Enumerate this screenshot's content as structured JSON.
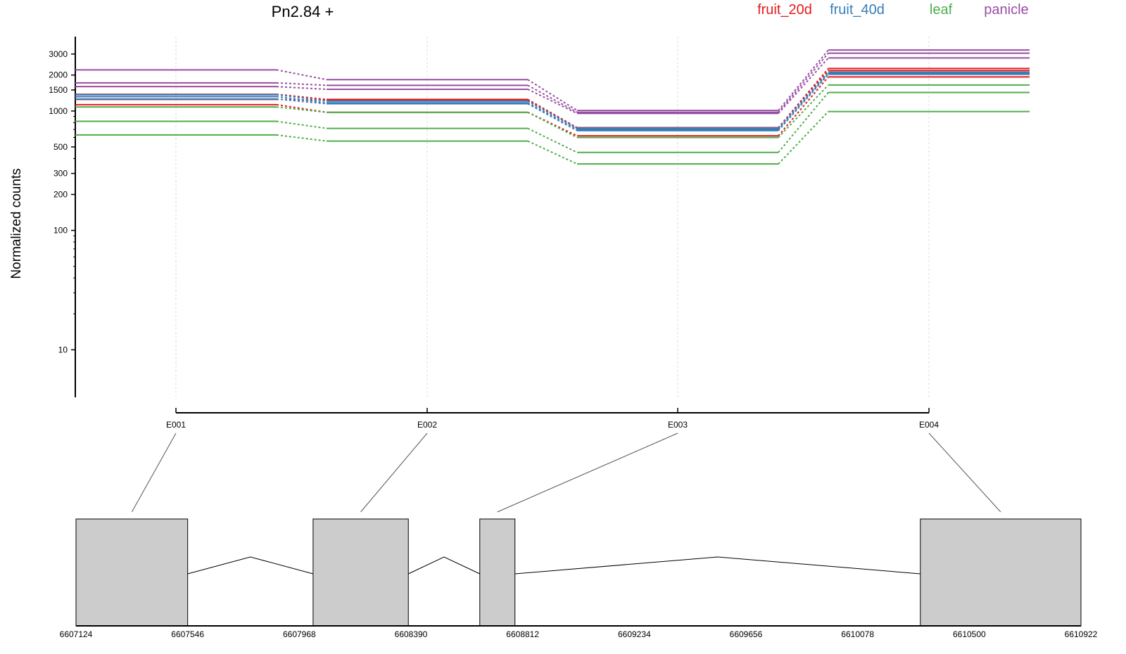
{
  "chart_data": {
    "type": "line",
    "title": "Pn2.84 +",
    "ylabel": "Normalized counts",
    "yscale": "log",
    "ylim": [
      4,
      4200
    ],
    "yticks": [
      10,
      100,
      200,
      300,
      500,
      1000,
      1500,
      2000,
      3000
    ],
    "grid": true,
    "legend_position": "top-right",
    "categories": [
      "E001",
      "E002",
      "E003",
      "E004"
    ],
    "colors": {
      "fruit_20d": "#e41a1c",
      "fruit_40d": "#377eb8",
      "leaf": "#4daf4a",
      "panicle": "#984ea3"
    },
    "legend": [
      "fruit_20d",
      "fruit_40d",
      "leaf",
      "panicle"
    ],
    "series": [
      {
        "group": "panicle",
        "values": [
          2210,
          1830,
          1010,
          3240
        ]
      },
      {
        "group": "panicle",
        "values": [
          1720,
          1640,
          975,
          3050
        ]
      },
      {
        "group": "panicle",
        "values": [
          1600,
          1520,
          955,
          2780
        ]
      },
      {
        "group": "fruit_20d",
        "values": [
          1380,
          1250,
          725,
          2270
        ]
      },
      {
        "group": "fruit_20d",
        "values": [
          1250,
          1230,
          715,
          2180
        ]
      },
      {
        "group": "fruit_20d",
        "values": [
          1130,
          975,
          620,
          1930
        ]
      },
      {
        "group": "fruit_40d",
        "values": [
          1370,
          1210,
          720,
          2110
        ]
      },
      {
        "group": "fruit_40d",
        "values": [
          1320,
          1170,
          700,
          2060
        ]
      },
      {
        "group": "fruit_40d",
        "values": [
          1260,
          1150,
          685,
          2030
        ]
      },
      {
        "group": "leaf",
        "values": [
          1080,
          975,
          600,
          1650
        ]
      },
      {
        "group": "leaf",
        "values": [
          820,
          715,
          450,
          1430
        ]
      },
      {
        "group": "leaf",
        "values": [
          630,
          560,
          360,
          990
        ]
      }
    ],
    "gene_model": {
      "coordinate_ticks": [
        6607124,
        6607546,
        6607968,
        6608390,
        6608812,
        6609234,
        6609656,
        6610078,
        6610500,
        6610922
      ],
      "range": [
        6607124,
        6610922
      ],
      "exons": [
        {
          "name": "E001",
          "start": 6607124,
          "end": 6607546
        },
        {
          "name": "E002",
          "start": 6608020,
          "end": 6608380
        },
        {
          "name": "E003",
          "start": 6608650,
          "end": 6608783
        },
        {
          "name": "E004",
          "start": 6610315,
          "end": 6610922
        }
      ]
    }
  }
}
